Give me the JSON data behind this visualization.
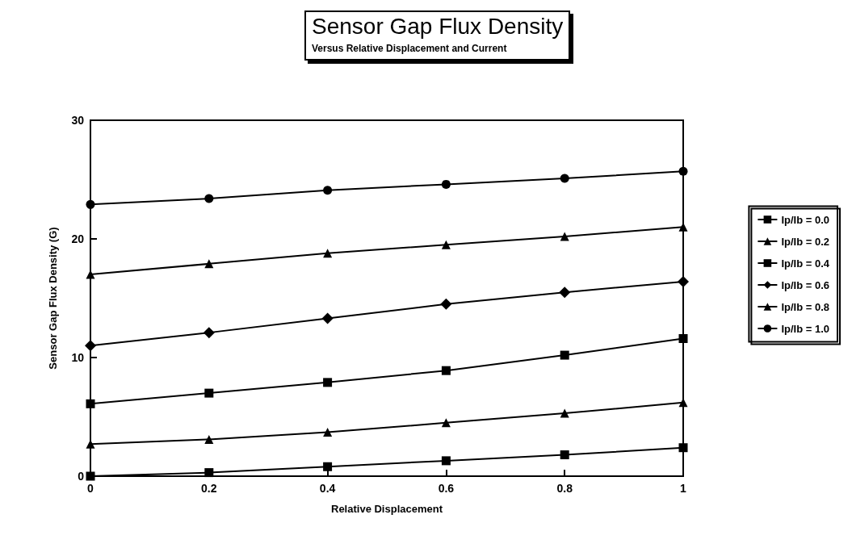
{
  "chart_data": {
    "type": "line",
    "title": "Sensor Gap Flux Density",
    "subtitle": "Versus Relative Displacement and Current",
    "xlabel": "Relative Displacement",
    "ylabel": "Sensor Gap Flux Density (G)",
    "x": [
      0,
      0.2,
      0.4,
      0.6,
      0.8,
      1
    ],
    "series": [
      {
        "name": "Ip/Ib = 0.0",
        "color": "#000000",
        "marker": "square",
        "values": [
          0,
          0.3,
          0.8,
          1.3,
          1.8,
          2.4
        ]
      },
      {
        "name": "Ip/Ib = 0.2",
        "color": "#000000",
        "marker": "triangle",
        "values": [
          2.7,
          3.1,
          3.7,
          4.5,
          5.3,
          6.2
        ]
      },
      {
        "name": "Ip/Ib = 0.4",
        "color": "#000000",
        "marker": "square",
        "values": [
          6.1,
          7.0,
          7.9,
          8.9,
          10.2,
          11.6
        ]
      },
      {
        "name": "Ip/Ib = 0.6",
        "color": "#000000",
        "marker": "diamond",
        "values": [
          11.0,
          12.1,
          13.3,
          14.5,
          15.5,
          16.4
        ]
      },
      {
        "name": "Ip/Ib = 0.8",
        "color": "#000000",
        "marker": "triangle",
        "values": [
          17.0,
          17.9,
          18.8,
          19.5,
          20.2,
          21.0
        ]
      },
      {
        "name": "Ip/Ib = 1.0",
        "color": "#000000",
        "marker": "circle",
        "values": [
          22.9,
          23.4,
          24.1,
          24.6,
          25.1,
          25.7
        ]
      }
    ],
    "xlim": [
      0,
      1
    ],
    "xticks": [
      0,
      0.2,
      0.4,
      0.6,
      0.8,
      1
    ],
    "ylim": [
      0,
      30
    ],
    "yticks": [
      0,
      10,
      20,
      30
    ],
    "grid": false,
    "legend": "right",
    "line_style": "solid"
  }
}
